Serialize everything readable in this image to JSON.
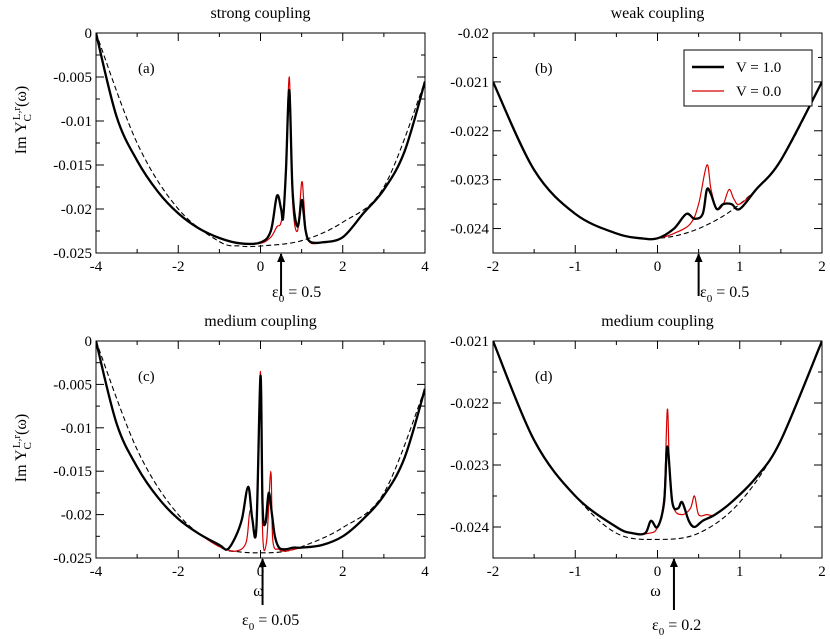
{
  "colors": {
    "v1": "#000000",
    "v0": "#d40000",
    "ref": "#000000"
  },
  "ylabel_parts": {
    "main": "Im Y",
    "sub": "C",
    "sup": "L,r",
    "tail": "(ω)"
  },
  "legend": {
    "entries": [
      "V = 1.0",
      "V = 0.0"
    ]
  },
  "chart_data": [
    {
      "id": "a",
      "type": "line",
      "title": "strong coupling",
      "panel_label": "(a)",
      "xlim": [
        -4,
        4
      ],
      "ylim": [
        -0.025,
        0
      ],
      "xticks": [
        -4,
        -2,
        0,
        2,
        4
      ],
      "xtick_labels": [
        "-4",
        "-2",
        "0",
        "2",
        "4"
      ],
      "yticks": [
        0,
        -0.005,
        -0.01,
        -0.015,
        -0.02,
        -0.025
      ],
      "ytick_labels": [
        "0",
        "-0.005",
        "-0.01",
        "-0.015",
        "-0.02",
        "-0.025"
      ],
      "xlabel": "",
      "annotation": {
        "eps": "0.5",
        "text_prefix": "ε",
        "text_sub": "0",
        "text_suffix": " = 0.5"
      },
      "series": [
        {
          "name": "V = 1.0",
          "x": [
            -4,
            -3.5,
            -3,
            -2.5,
            -2,
            -1.5,
            -1,
            -0.5,
            0,
            0.25,
            0.4,
            0.5,
            0.55,
            0.62,
            0.7,
            0.78,
            0.9,
            1.0,
            1.05,
            1.1,
            1.2,
            1.5,
            2,
            2.5,
            3,
            3.5,
            4
          ],
          "y": [
            0,
            -0.0095,
            -0.0145,
            -0.018,
            -0.0205,
            -0.0222,
            -0.0233,
            -0.0239,
            -0.0238,
            -0.0225,
            -0.0185,
            -0.02,
            -0.021,
            -0.0155,
            -0.0065,
            -0.018,
            -0.022,
            -0.019,
            -0.0205,
            -0.0225,
            -0.0237,
            -0.0238,
            -0.0232,
            -0.0205,
            -0.0178,
            -0.0135,
            -0.0055
          ]
        },
        {
          "name": "V = 0.0",
          "x": [
            -4,
            -3.5,
            -3,
            -2.5,
            -2,
            -1.5,
            -1,
            -0.5,
            0,
            0.25,
            0.4,
            0.5,
            0.6,
            0.7,
            0.78,
            0.9,
            1.0,
            1.05,
            1.1,
            1.2,
            1.5,
            2,
            2.5,
            3,
            3.5,
            4
          ],
          "y": [
            0,
            -0.0095,
            -0.0145,
            -0.018,
            -0.0205,
            -0.0222,
            -0.0233,
            -0.0239,
            -0.0239,
            -0.0232,
            -0.022,
            -0.0215,
            -0.018,
            -0.005,
            -0.019,
            -0.0225,
            -0.017,
            -0.019,
            -0.0222,
            -0.0238,
            -0.0238,
            -0.0232,
            -0.0205,
            -0.0178,
            -0.0135,
            -0.0055
          ]
        },
        {
          "name": "reference",
          "x": [
            -4,
            -3,
            -2,
            -1,
            -0.5,
            0,
            1,
            2,
            3,
            4
          ],
          "y": [
            0,
            -0.0125,
            -0.02,
            -0.0237,
            -0.0242,
            -0.0242,
            -0.0236,
            -0.0215,
            -0.0175,
            -0.0055
          ]
        }
      ]
    },
    {
      "id": "b",
      "type": "line",
      "title": "weak coupling",
      "panel_label": "(b)",
      "xlim": [
        -2,
        2
      ],
      "ylim": [
        -0.0245,
        -0.02
      ],
      "xticks": [
        -2,
        -1,
        0,
        1,
        2
      ],
      "xtick_labels": [
        "-2",
        "-1",
        "0",
        "1",
        "2"
      ],
      "yticks": [
        -0.02,
        -0.021,
        -0.022,
        -0.023,
        -0.024
      ],
      "ytick_labels": [
        "-0.02",
        "-0.021",
        "-0.022",
        "-0.023",
        "-0.024"
      ],
      "xlabel": "",
      "annotation": {
        "eps": "0.5",
        "text_prefix": "ε",
        "text_sub": "0",
        "text_suffix": " = 0.5"
      },
      "series": [
        {
          "name": "V = 1.0",
          "x": [
            -2,
            -1.5,
            -1,
            -0.5,
            -0.2,
            0,
            0.2,
            0.35,
            0.45,
            0.55,
            0.6,
            0.65,
            0.72,
            0.8,
            0.9,
            1.0,
            1.2,
            1.5,
            2
          ],
          "y": [
            -0.021,
            -0.0228,
            -0.0237,
            -0.0241,
            -0.0242,
            -0.0242,
            -0.024,
            -0.0237,
            -0.0238,
            -0.0237,
            -0.0232,
            -0.0233,
            -0.0236,
            -0.0235,
            -0.0235,
            -0.0236,
            -0.0232,
            -0.0226,
            -0.021
          ]
        },
        {
          "name": "V = 0.0",
          "x": [
            -2,
            -1.5,
            -1,
            -0.5,
            -0.2,
            0,
            0.2,
            0.4,
            0.5,
            0.6,
            0.65,
            0.72,
            0.8,
            0.87,
            0.93,
            1.0,
            1.2,
            1.5,
            2
          ],
          "y": [
            -0.021,
            -0.0228,
            -0.0237,
            -0.0241,
            -0.0242,
            -0.0242,
            -0.0241,
            -0.0239,
            -0.0235,
            -0.0227,
            -0.0232,
            -0.0236,
            -0.0235,
            -0.0232,
            -0.0234,
            -0.0235,
            -0.0232,
            -0.0226,
            -0.021
          ]
        },
        {
          "name": "reference",
          "x": [
            -2,
            -1.5,
            -1,
            -0.5,
            0,
            0.5,
            1,
            1.5,
            2
          ],
          "y": [
            -0.021,
            -0.0228,
            -0.0237,
            -0.0241,
            -0.0242,
            -0.024,
            -0.0235,
            -0.0226,
            -0.021
          ]
        }
      ]
    },
    {
      "id": "c",
      "type": "line",
      "title": "medium coupling",
      "panel_label": "(c)",
      "xlim": [
        -4,
        4
      ],
      "ylim": [
        -0.025,
        0
      ],
      "xticks": [
        -4,
        -2,
        0,
        2,
        4
      ],
      "xtick_labels": [
        "-4",
        "-2",
        "0",
        "2",
        "4"
      ],
      "yticks": [
        0,
        -0.005,
        -0.01,
        -0.015,
        -0.02,
        -0.025
      ],
      "ytick_labels": [
        "0",
        "-0.005",
        "-0.01",
        "-0.015",
        "-0.02",
        "-0.025"
      ],
      "xlabel": "ω",
      "annotation": {
        "eps": "0.05",
        "text_prefix": "ε",
        "text_sub": "0",
        "text_suffix": " = 0.05"
      },
      "series": [
        {
          "name": "V = 1.0",
          "x": [
            -4,
            -3.5,
            -3,
            -2.5,
            -2,
            -1.5,
            -1,
            -0.8,
            -0.6,
            -0.45,
            -0.3,
            -0.2,
            -0.1,
            0,
            0.05,
            0.12,
            0.2,
            0.28,
            0.35,
            0.45,
            0.6,
            0.8,
            1,
            1.5,
            2,
            2.5,
            3,
            3.5,
            4
          ],
          "y": [
            0,
            -0.0095,
            -0.0145,
            -0.018,
            -0.0205,
            -0.0222,
            -0.0235,
            -0.024,
            -0.0225,
            -0.0205,
            -0.0168,
            -0.0205,
            -0.0215,
            -0.004,
            -0.019,
            -0.021,
            -0.0175,
            -0.02,
            -0.0225,
            -0.0238,
            -0.024,
            -0.0238,
            -0.0238,
            -0.0235,
            -0.0225,
            -0.0205,
            -0.0178,
            -0.0135,
            -0.0055
          ]
        },
        {
          "name": "V = 0.0",
          "x": [
            -4,
            -3.5,
            -3,
            -2.5,
            -2,
            -1.5,
            -1,
            -0.6,
            -0.35,
            -0.25,
            -0.1,
            0,
            0.05,
            0.15,
            0.25,
            0.3,
            0.45,
            0.6,
            1,
            1.5,
            2,
            2.5,
            3,
            3.5,
            4
          ],
          "y": [
            0,
            -0.0095,
            -0.0145,
            -0.018,
            -0.0205,
            -0.0222,
            -0.0237,
            -0.0242,
            -0.0232,
            -0.0195,
            -0.0215,
            -0.0035,
            -0.022,
            -0.023,
            -0.015,
            -0.023,
            -0.024,
            -0.0242,
            -0.0238,
            -0.0235,
            -0.0225,
            -0.0205,
            -0.0178,
            -0.0135,
            -0.0055
          ]
        },
        {
          "name": "reference",
          "x": [
            -4,
            -3,
            -2,
            -1,
            -0.5,
            0,
            0.5,
            1,
            2,
            3,
            4
          ],
          "y": [
            0,
            -0.0125,
            -0.02,
            -0.0237,
            -0.0243,
            -0.0244,
            -0.0243,
            -0.0237,
            -0.0215,
            -0.0175,
            -0.0055
          ]
        }
      ]
    },
    {
      "id": "d",
      "type": "line",
      "title": "medium coupling",
      "panel_label": "(d)",
      "xlim": [
        -2,
        2
      ],
      "ylim": [
        -0.0245,
        -0.021
      ],
      "xticks": [
        -2,
        -1,
        0,
        1,
        2
      ],
      "xtick_labels": [
        "-2",
        "-1",
        "0",
        "1",
        "2"
      ],
      "yticks": [
        -0.021,
        -0.022,
        -0.023,
        -0.024
      ],
      "ytick_labels": [
        "-0.021",
        "-0.022",
        "-0.023",
        "-0.024"
      ],
      "xlabel": "ω",
      "annotation": {
        "eps": "0.2",
        "text_prefix": "ε",
        "text_sub": "0",
        "text_suffix": " = 0.2"
      },
      "series": [
        {
          "name": "V = 1.0",
          "x": [
            -2,
            -1.5,
            -1,
            -0.5,
            -0.3,
            -0.15,
            -0.08,
            0,
            0.08,
            0.12,
            0.18,
            0.25,
            0.3,
            0.38,
            0.45,
            0.55,
            0.7,
            0.9,
            1.2,
            1.5,
            2
          ],
          "y": [
            -0.021,
            -0.0226,
            -0.0235,
            -0.024,
            -0.0241,
            -0.0241,
            -0.0239,
            -0.024,
            -0.0236,
            -0.0227,
            -0.0236,
            -0.0237,
            -0.0236,
            -0.0239,
            -0.024,
            -0.0239,
            -0.0238,
            -0.0236,
            -0.0232,
            -0.0226,
            -0.021
          ]
        },
        {
          "name": "V = 0.0",
          "x": [
            -2,
            -1.5,
            -1,
            -0.5,
            -0.3,
            -0.1,
            0,
            0.08,
            0.12,
            0.15,
            0.2,
            0.3,
            0.4,
            0.45,
            0.5,
            0.6,
            0.7,
            0.9,
            1.2,
            1.5,
            2
          ],
          "y": [
            -0.021,
            -0.0226,
            -0.0235,
            -0.024,
            -0.0241,
            -0.0241,
            -0.024,
            -0.0235,
            -0.0221,
            -0.0232,
            -0.0237,
            -0.0238,
            -0.0237,
            -0.0235,
            -0.0238,
            -0.0238,
            -0.0238,
            -0.0236,
            -0.0232,
            -0.0226,
            -0.021
          ]
        },
        {
          "name": "reference",
          "x": [
            -2,
            -1.5,
            -1,
            -0.5,
            0,
            0.5,
            1,
            1.5,
            2
          ],
          "y": [
            -0.021,
            -0.0226,
            -0.0235,
            -0.0241,
            -0.0242,
            -0.0241,
            -0.0236,
            -0.0226,
            -0.021
          ]
        }
      ]
    }
  ]
}
